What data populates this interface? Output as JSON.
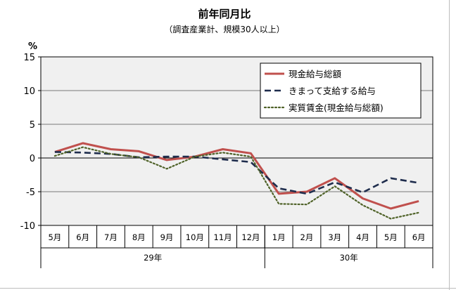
{
  "title": "前年同月比",
  "subtitle": "（調査産業計、規模30人以上）",
  "unit_label": "%",
  "chart_data": {
    "type": "line",
    "title": "前年同月比",
    "subtitle": "（調査産業計、規模30人以上）",
    "ylabel": "%",
    "ylim": [
      -10,
      15
    ],
    "yticks": [
      15,
      10,
      5,
      0,
      -5,
      -10
    ],
    "categories": [
      "5月",
      "6月",
      "7月",
      "8月",
      "9月",
      "10月",
      "11月",
      "12月",
      "1月",
      "2月",
      "3月",
      "4月",
      "5月",
      "6月"
    ],
    "year_groups": [
      {
        "label": "29年",
        "span": 8
      },
      {
        "label": "30年",
        "span": 6
      }
    ],
    "legend_position": "top-right",
    "series": [
      {
        "name": "現金給与総額",
        "style": "solid",
        "color": "#c0504d",
        "values": [
          0.9,
          2.2,
          1.3,
          1.0,
          -0.3,
          0.2,
          1.3,
          0.7,
          -5.3,
          -5.0,
          -3.0,
          -6.0,
          -7.5,
          -6.4
        ]
      },
      {
        "name": "きまって支給する給与",
        "style": "dashed",
        "color": "#1f2d4d",
        "values": [
          0.9,
          0.8,
          0.6,
          0.1,
          0.2,
          0.2,
          -0.2,
          -0.6,
          -4.5,
          -5.3,
          -3.6,
          -5.1,
          -3.0,
          -3.7
        ]
      },
      {
        "name": "実質賃金(現金給与総額)",
        "style": "dotted",
        "color": "#4f6228",
        "values": [
          0.3,
          1.6,
          0.6,
          0.1,
          -1.6,
          0.2,
          0.8,
          0.2,
          -6.8,
          -6.9,
          -4.2,
          -7.0,
          -9.0,
          -8.1
        ]
      }
    ]
  }
}
